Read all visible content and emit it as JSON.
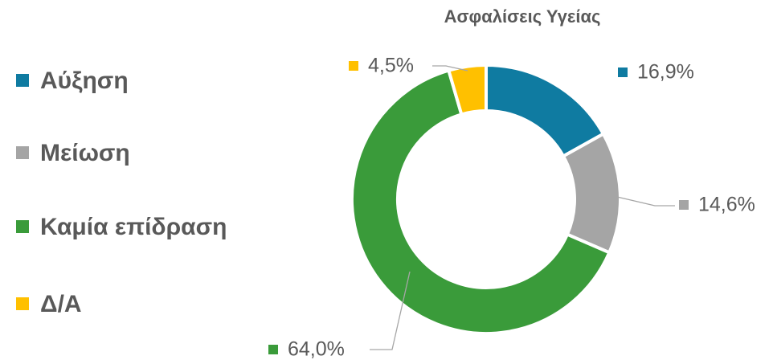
{
  "chart_data": {
    "type": "donut",
    "title": "Ασφαλίσεις Υγείας",
    "categories": [
      "Αύξηση",
      "Μείωση",
      "Καμία επίδραση",
      "Δ/Α"
    ],
    "values": [
      16.9,
      14.6,
      64.0,
      4.5
    ],
    "value_labels": [
      "16,9%",
      "14,6%",
      "64,0%",
      "4,5%"
    ],
    "colors": [
      "#0f7ba1",
      "#a5a5a5",
      "#3a9b3a",
      "#ffc000"
    ],
    "legend": "left"
  }
}
